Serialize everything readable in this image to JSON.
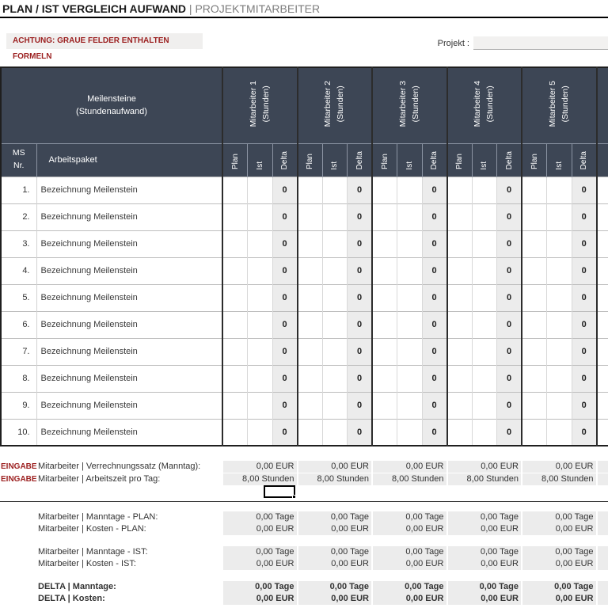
{
  "title": {
    "main": "PLAN / IST VERGLEICH AUFWAND",
    "separator": " | ",
    "sub": "PROJEKTMITARBEITER"
  },
  "notice": "ACHTUNG: GRAUE FELDER ENTHALTEN FORMELN",
  "project": {
    "label": "Projekt :",
    "value": ""
  },
  "table": {
    "main_header": "Meilensteine\n(Stundenaufwand)",
    "ms_nr_header": "MS\nNr.",
    "work_package_header": "Arbeitspaket",
    "employee_groups": [
      {
        "name": "Mitarbeiter 1",
        "unit": "(Stunden)"
      },
      {
        "name": "Mitarbeiter 2",
        "unit": "(Stunden)"
      },
      {
        "name": "Mitarbeiter 3",
        "unit": "(Stunden)"
      },
      {
        "name": "Mitarbeiter 4",
        "unit": "(Stunden)"
      },
      {
        "name": "Mitarbeiter 5",
        "unit": "(Stunden)"
      }
    ],
    "sub_columns": [
      "Plan",
      "Ist",
      "Delta"
    ],
    "rows": [
      {
        "nr": "1.",
        "label": "Bezeichnung Meilenstein",
        "plan": "",
        "ist": "",
        "delta": "0"
      },
      {
        "nr": "2.",
        "label": "Bezeichnung Meilenstein",
        "plan": "",
        "ist": "",
        "delta": "0"
      },
      {
        "nr": "3.",
        "label": "Bezeichnung Meilenstein",
        "plan": "",
        "ist": "",
        "delta": "0"
      },
      {
        "nr": "4.",
        "label": "Bezeichnung Meilenstein",
        "plan": "",
        "ist": "",
        "delta": "0"
      },
      {
        "nr": "5.",
        "label": "Bezeichnung Meilenstein",
        "plan": "",
        "ist": "",
        "delta": "0"
      },
      {
        "nr": "6.",
        "label": "Bezeichnung Meilenstein",
        "plan": "",
        "ist": "",
        "delta": "0"
      },
      {
        "nr": "7.",
        "label": "Bezeichnung Meilenstein",
        "plan": "",
        "ist": "",
        "delta": "0"
      },
      {
        "nr": "8.",
        "label": "Bezeichnung Meilenstein",
        "plan": "",
        "ist": "",
        "delta": "0"
      },
      {
        "nr": "9.",
        "label": "Bezeichnung Meilenstein",
        "plan": "",
        "ist": "",
        "delta": "0"
      },
      {
        "nr": "10.",
        "label": "Bezeichnung Meilenstein",
        "plan": "",
        "ist": "",
        "delta": "0"
      }
    ]
  },
  "input_rows": [
    {
      "tag": "EINGABE",
      "label": "Mitarbeiter | Verrechnungssatz (Manntag):",
      "value": "0,00 EUR"
    },
    {
      "tag": "EINGABE",
      "label": "Mitarbeiter | Arbeitszeit pro Tag:",
      "value": "8,00 Stunden"
    }
  ],
  "summary_rows": [
    {
      "label": "Mitarbeiter | Manntage - PLAN:",
      "value": "0,00 Tage",
      "bold": false
    },
    {
      "label": "Mitarbeiter | Kosten - PLAN:",
      "value": "0,00 EUR",
      "bold": false
    },
    {
      "label": "Mitarbeiter | Manntage - IST:",
      "value": "0,00 Tage",
      "bold": false
    },
    {
      "label": "Mitarbeiter | Kosten - IST:",
      "value": "0,00 EUR",
      "bold": false
    },
    {
      "label": "DELTA | Manntage:",
      "value": "0,00 Tage",
      "bold": true
    },
    {
      "label": "DELTA | Kosten:",
      "value": "0,00 EUR",
      "bold": true
    }
  ],
  "colors": {
    "header_bg": "#3d4655",
    "formula_cell_bg": "#ececec",
    "accent_red": "#9c2020",
    "title_sub_gray": "#7d7d7d"
  }
}
